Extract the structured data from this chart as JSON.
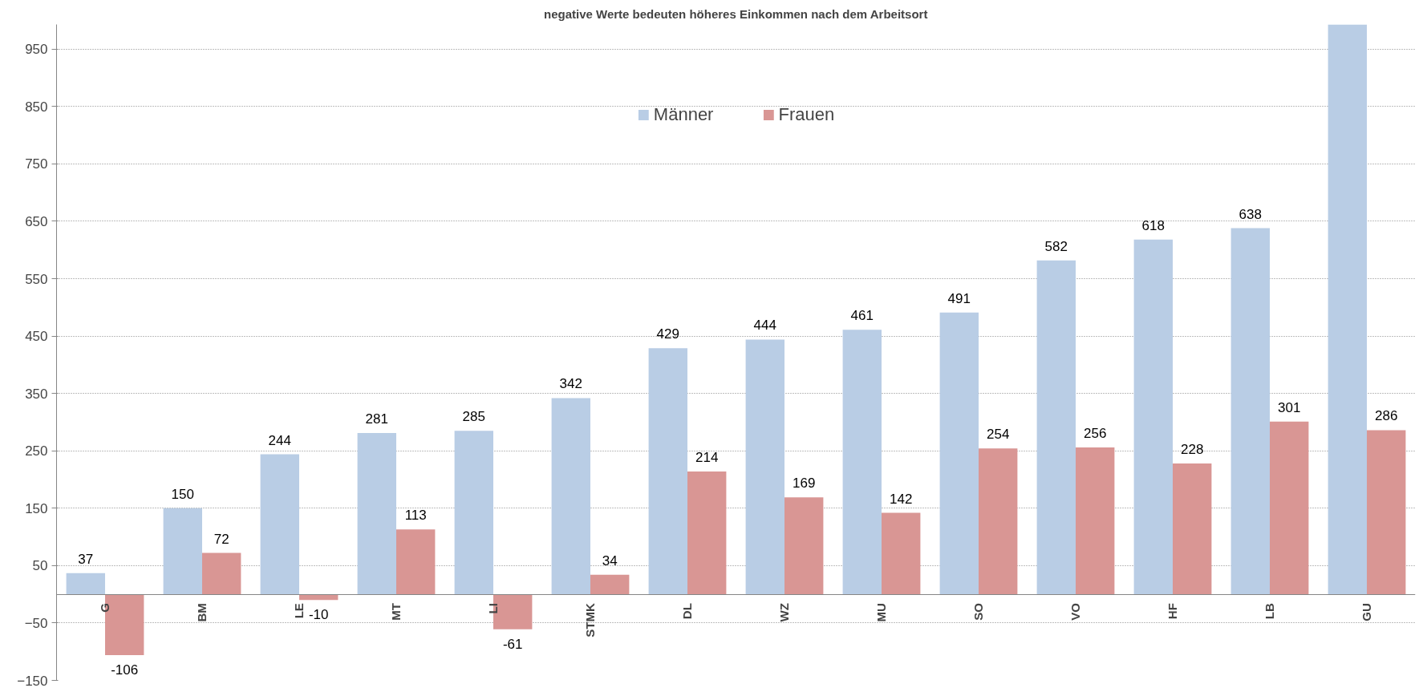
{
  "chart_data": {
    "type": "bar",
    "title": "negative Werte bedeuten höheres Einkommen nach dem Arbeitsort",
    "categories": [
      "G",
      "BM",
      "LE",
      "MT",
      "LI",
      "STMK",
      "DL",
      "WZ",
      "MU",
      "SO",
      "VO",
      "HF",
      "LB",
      "GU"
    ],
    "series": [
      {
        "name": "Männer",
        "color": "#b9cde5",
        "values": [
          37,
          150,
          244,
          281,
          285,
          342,
          429,
          444,
          461,
          491,
          582,
          618,
          638,
          993
        ],
        "value_labels": [
          "37",
          "150",
          "244",
          "281",
          "285",
          "342",
          "429",
          "444",
          "461",
          "491",
          "582",
          "618",
          "638",
          null
        ]
      },
      {
        "name": "Frauen",
        "color": "#d99694",
        "values": [
          -106,
          72,
          -10,
          113,
          -61,
          34,
          214,
          169,
          142,
          254,
          256,
          228,
          301,
          286
        ],
        "value_labels": [
          "-106",
          "72",
          "-10",
          "113",
          "-61",
          "34",
          "214",
          "169",
          "142",
          "254",
          "256",
          "228",
          "301",
          "286"
        ]
      }
    ],
    "ylim": [
      -150,
      993
    ],
    "yticks": [
      -150,
      -50,
      50,
      150,
      250,
      350,
      450,
      550,
      650,
      750,
      850,
      950
    ],
    "grid": "y",
    "legend": "top"
  }
}
